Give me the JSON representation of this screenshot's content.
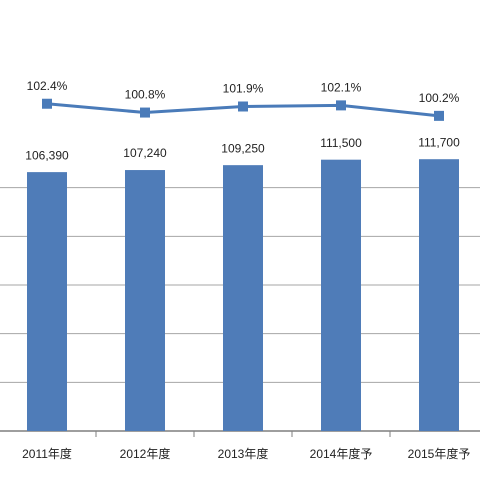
{
  "chart_data": {
    "type": "bar",
    "categories": [
      "2011年度",
      "2012年度",
      "2013年度",
      "2014年度予",
      "2015年度予"
    ],
    "series": [
      {
        "type": "bar",
        "color": "#4f7cb8",
        "values": [
          106390,
          107240,
          109250,
          111500,
          111700
        ],
        "value_labels": [
          "106,390",
          "107,240",
          "109,250",
          "111,500",
          "111,700"
        ]
      },
      {
        "type": "line",
        "axis": "y2",
        "color": "#4a7bb9",
        "values": [
          102.4,
          100.8,
          101.9,
          102.1,
          100.2
        ],
        "value_labels": [
          "102.4%",
          "100.8%",
          "101.9%",
          "102.1%",
          "100.2%"
        ]
      }
    ],
    "ylim": [
      0,
      120000
    ],
    "yticks": [
      20000,
      40000,
      60000,
      80000,
      100000
    ],
    "y2lim": [
      43,
      96
    ],
    "grid": true
  }
}
